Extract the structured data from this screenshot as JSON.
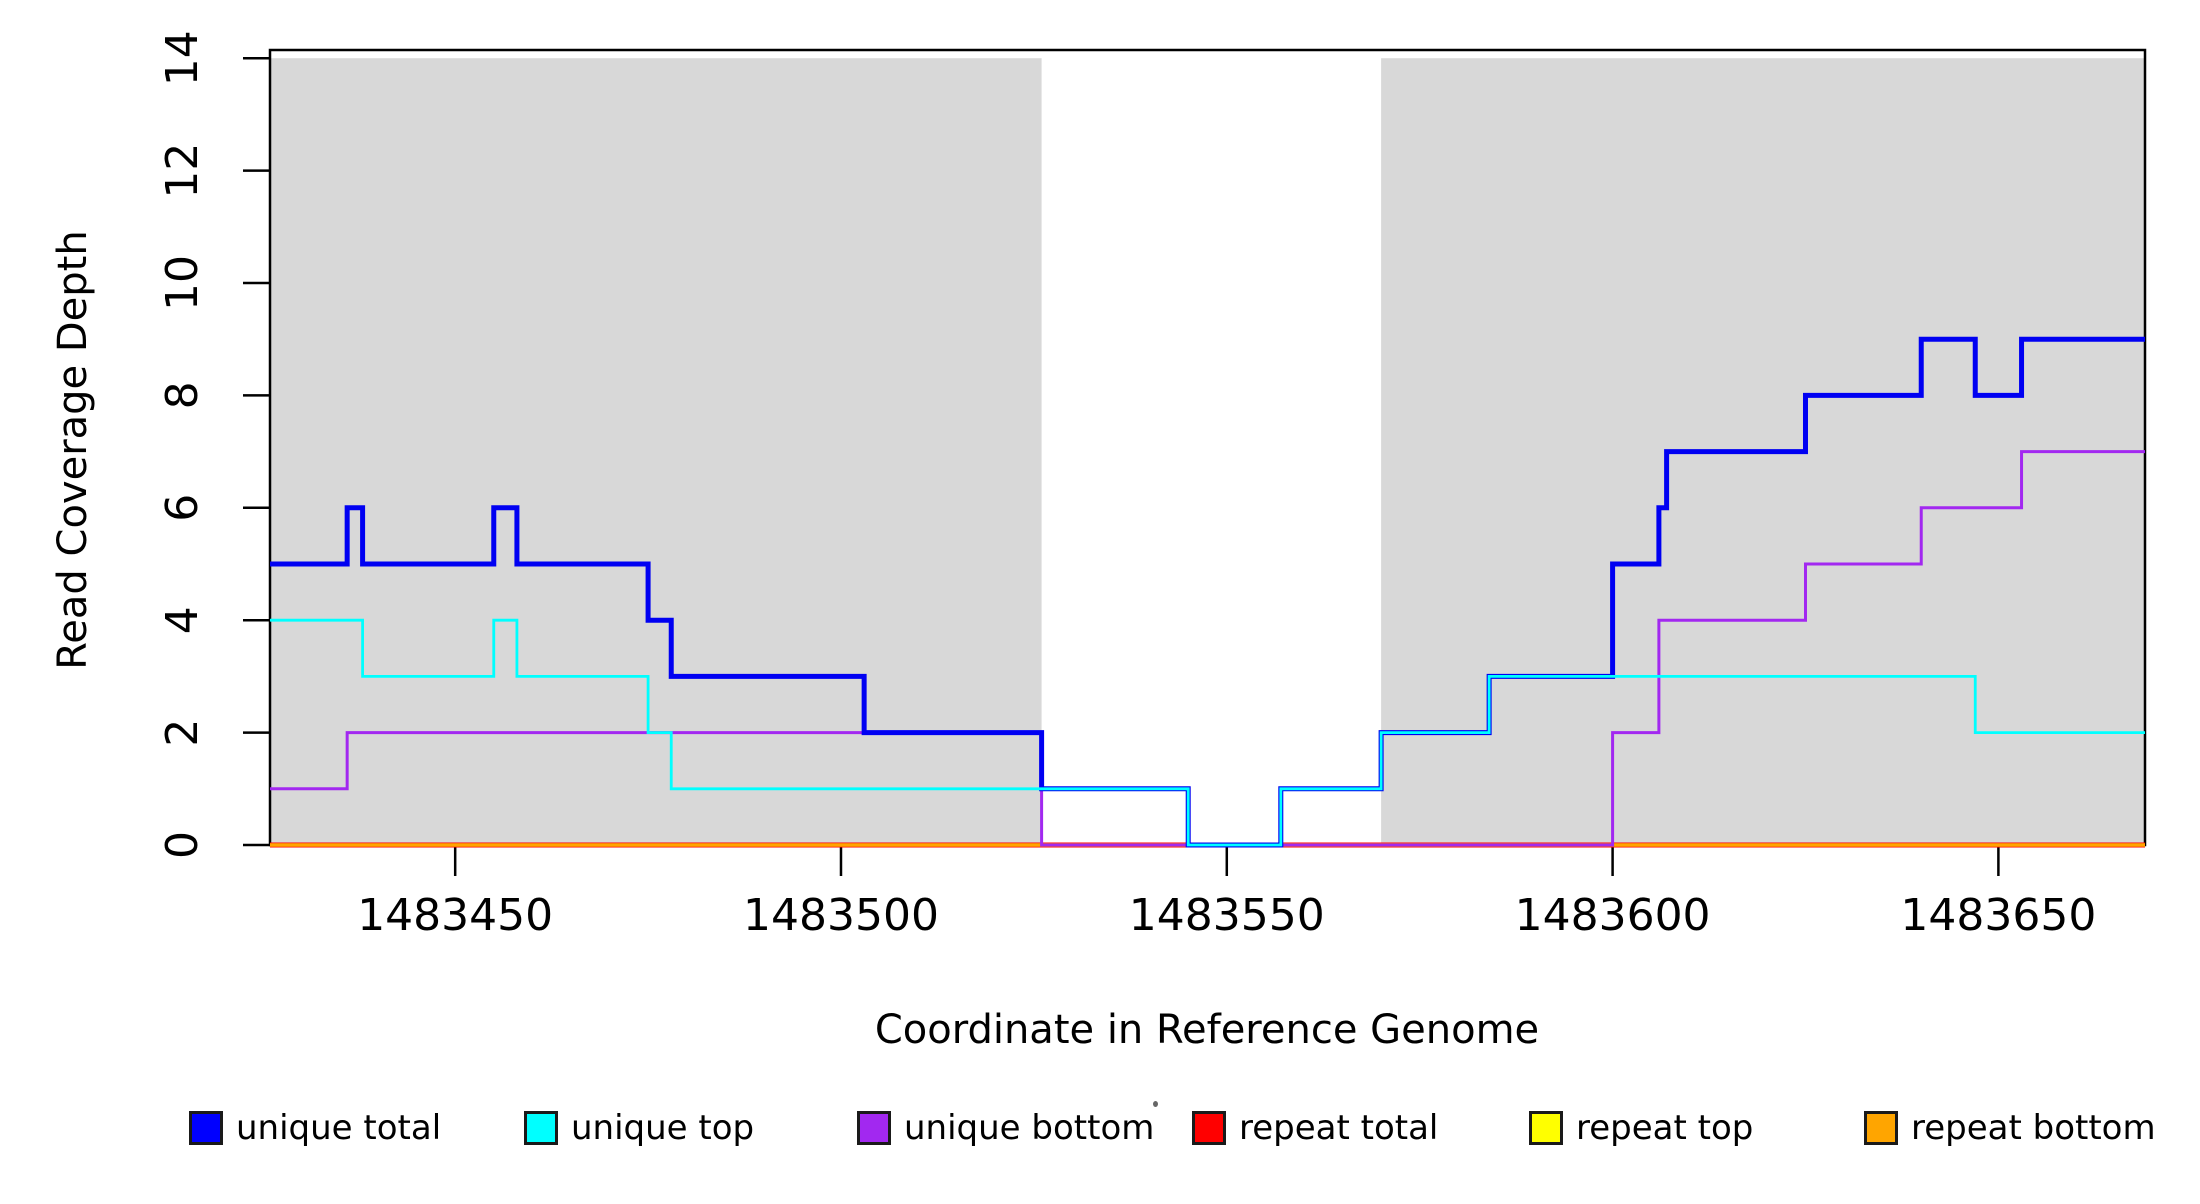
{
  "chart_data": {
    "type": "step-line",
    "title": "",
    "xlabel": "Coordinate in Reference Genome",
    "ylabel": "Read Coverage Depth",
    "xlim": [
      1483426,
      1483669
    ],
    "ylim": [
      0,
      14
    ],
    "x_ticks": [
      1483450,
      1483500,
      1483550,
      1483600,
      1483650
    ],
    "y_ticks": [
      0,
      2,
      4,
      6,
      8,
      10,
      12,
      14
    ],
    "grid": "off",
    "shade_color": "#d8d8d8",
    "shaded_regions": [
      [
        1483426,
        1483526
      ],
      [
        1483570,
        1483669
      ]
    ],
    "series": [
      {
        "name": "unique total",
        "color": "#0000f2",
        "steps": [
          [
            1483426,
            5
          ],
          [
            1483436,
            6
          ],
          [
            1483438,
            5
          ],
          [
            1483455,
            6
          ],
          [
            1483458,
            5
          ],
          [
            1483475,
            4
          ],
          [
            1483478,
            3
          ],
          [
            1483503,
            2
          ],
          [
            1483526,
            1
          ],
          [
            1483545,
            0
          ],
          [
            1483557,
            1
          ],
          [
            1483570,
            2
          ],
          [
            1483584,
            3
          ],
          [
            1483600,
            5
          ],
          [
            1483606,
            6
          ],
          [
            1483607,
            7
          ],
          [
            1483625,
            8
          ],
          [
            1483640,
            9
          ],
          [
            1483647,
            8
          ],
          [
            1483653,
            9
          ]
        ]
      },
      {
        "name": "unique top",
        "color": "#00ffff",
        "steps": [
          [
            1483426,
            4
          ],
          [
            1483438,
            3
          ],
          [
            1483455,
            4
          ],
          [
            1483458,
            3
          ],
          [
            1483475,
            2
          ],
          [
            1483478,
            1
          ],
          [
            1483545,
            0
          ],
          [
            1483557,
            1
          ],
          [
            1483570,
            2
          ],
          [
            1483584,
            3
          ],
          [
            1483647,
            2
          ]
        ]
      },
      {
        "name": "unique bottom",
        "color": "#a228f0",
        "steps": [
          [
            1483426,
            1
          ],
          [
            1483436,
            2
          ],
          [
            1483526,
            0
          ],
          [
            1483600,
            2
          ],
          [
            1483606,
            4
          ],
          [
            1483625,
            5
          ],
          [
            1483640,
            6
          ],
          [
            1483653,
            7
          ]
        ]
      },
      {
        "name": "repeat total",
        "color": "#ff0000",
        "steps": [
          [
            1483426,
            0
          ]
        ]
      },
      {
        "name": "repeat top",
        "color": "#ffff00",
        "steps": [
          [
            1483426,
            0
          ]
        ]
      },
      {
        "name": "repeat bottom",
        "color": "#ffa500",
        "steps": [
          [
            1483426,
            0
          ]
        ]
      }
    ],
    "draw_order": [
      "repeat total",
      "repeat top",
      "repeat bottom",
      "unique bottom",
      "unique total",
      "unique top"
    ],
    "legend_position": "bottom"
  },
  "legend": {
    "items": [
      {
        "label": "unique total",
        "color": "#0000ff"
      },
      {
        "label": "unique top",
        "color": "#00ffff"
      },
      {
        "label": "unique bottom",
        "color": "#a228f0"
      },
      {
        "label": "repeat total",
        "color": "#ff0000"
      },
      {
        "label": "repeat top",
        "color": "#ffff00"
      },
      {
        "label": "repeat bottom",
        "color": "#ffa500"
      }
    ]
  }
}
